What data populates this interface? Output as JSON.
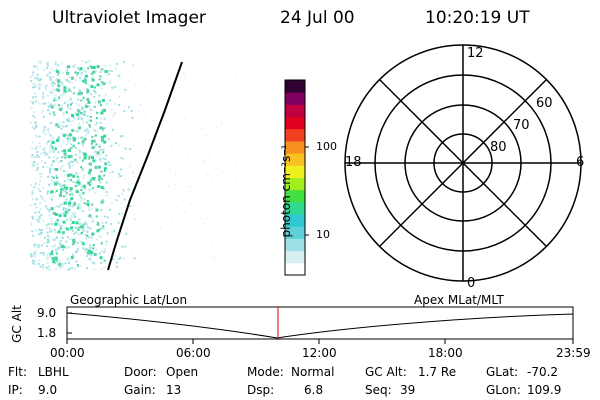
{
  "header": {
    "instrument": "Ultraviolet Imager",
    "date": "24 Jul 00",
    "time": "10:20:19 UT"
  },
  "colorbar": {
    "unit_label": "photon cm⁻²s⁻¹",
    "ticks": [
      "100",
      "10"
    ],
    "colors": [
      "#ffffff",
      "#d8eef0",
      "#9fe0e6",
      "#5fd0d8",
      "#2fc8d0",
      "#30d890",
      "#40e040",
      "#a0f020",
      "#f0f020",
      "#f8c020",
      "#f89020",
      "#f04020",
      "#e00020",
      "#c00040",
      "#800060",
      "#300030"
    ]
  },
  "polar_plot": {
    "mlt_labels": [
      "12",
      "18",
      "6",
      "0"
    ],
    "mlat_labels": [
      "60",
      "70",
      "80"
    ]
  },
  "timeline": {
    "ylabel": "GC Alt",
    "y_ticks": [
      "9.0",
      "1.8"
    ],
    "left_caption": "Geographic Lat/Lon",
    "right_caption": "Apex MLat/MLT",
    "x_ticks": [
      "00:00",
      "06:00",
      "12:00",
      "18:00",
      "23:59"
    ],
    "marker_time": "10:20"
  },
  "info": {
    "row1": [
      {
        "label": "Flt:",
        "value": "LBHL"
      },
      {
        "label": "Door:",
        "value": "Open"
      },
      {
        "label": "Mode:",
        "value": "Normal"
      },
      {
        "label": "GC Alt:",
        "value": "1.7 Re"
      },
      {
        "label": "GLat:",
        "value": "-70.2"
      }
    ],
    "row2": [
      {
        "label": "IP:",
        "value": "9.0"
      },
      {
        "label": "Gain:",
        "value": "13"
      },
      {
        "label": "Dsp:",
        "value": "6.8"
      },
      {
        "label": "Seq:",
        "value": "39"
      },
      {
        "label": "GLon:",
        "value": "109.9"
      }
    ]
  }
}
